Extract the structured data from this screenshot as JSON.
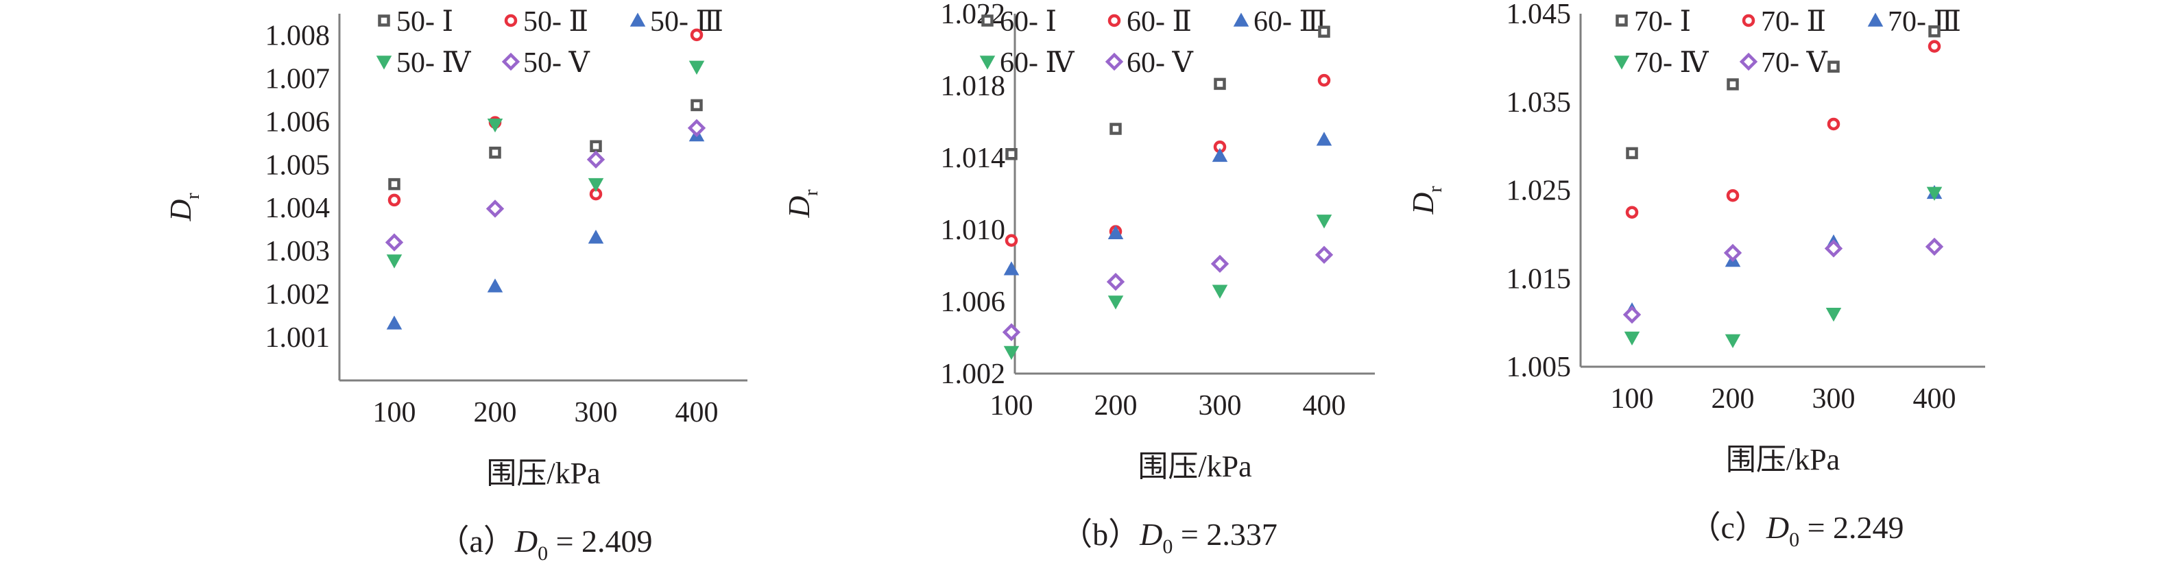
{
  "chart_data": [
    {
      "type": "scatter",
      "caption": {
        "prefix": "（a）",
        "d_symbol": "D",
        "d_sub": "0",
        "suffix": " = 2.409"
      },
      "xlabel": "围压/kPa",
      "ylabel": {
        "main": "D",
        "sub": "r"
      },
      "categories": [
        "100",
        "200",
        "300",
        "400"
      ],
      "x": [
        100,
        200,
        300,
        400
      ],
      "ylim": [
        1.0,
        1.0085
      ],
      "yticks": [
        1.001,
        1.002,
        1.003,
        1.004,
        1.005,
        1.006,
        1.007,
        1.008
      ],
      "ytick_labels": [
        "1.001",
        "1.002",
        "1.003",
        "1.004",
        "1.005",
        "1.006",
        "1.007",
        "1.008"
      ],
      "grid": false,
      "legend_position": "top",
      "series": [
        {
          "name": "50- Ⅰ",
          "color": "#595959",
          "marker": "square",
          "values": [
            1.00455,
            1.00528,
            1.00543,
            1.00638
          ]
        },
        {
          "name": "50- Ⅱ",
          "color": "#e8313f",
          "marker": "circle",
          "values": [
            1.00418,
            1.00598,
            1.00432,
            1.00801
          ]
        },
        {
          "name": "50- Ⅲ",
          "color": "#4472c4",
          "marker": "triangle-up",
          "values": [
            1.00132,
            1.00218,
            1.00331,
            1.00568
          ]
        },
        {
          "name": "50- Ⅳ",
          "color": "#3cb371",
          "marker": "triangle-down",
          "values": [
            1.00278,
            1.00593,
            1.00455,
            1.00727
          ]
        },
        {
          "name": "50- Ⅴ",
          "color": "#9966cc",
          "marker": "diamond",
          "values": [
            1.0032,
            1.00398,
            1.00512,
            1.00585
          ]
        }
      ]
    },
    {
      "type": "scatter",
      "caption": {
        "prefix": "（b）",
        "d_symbol": "D",
        "d_sub": "0",
        "suffix": " = 2.337"
      },
      "xlabel": "围压/kPa",
      "ylabel": {
        "main": "D",
        "sub": "r"
      },
      "categories": [
        "100",
        "200",
        "300",
        "400"
      ],
      "x": [
        100,
        200,
        300,
        400
      ],
      "ylim": [
        1.002,
        1.022
      ],
      "yticks": [
        1.002,
        1.006,
        1.01,
        1.014,
        1.018,
        1.022
      ],
      "ytick_labels": [
        "1.002",
        "1.006",
        "1.010",
        "1.014",
        "1.018",
        "1.022"
      ],
      "grid": false,
      "legend_position": "top",
      "series": [
        {
          "name": "60- Ⅰ",
          "color": "#595959",
          "marker": "square",
          "values": [
            1.0142,
            1.0156,
            1.0181,
            1.021
          ]
        },
        {
          "name": "60- Ⅱ",
          "color": "#e8313f",
          "marker": "circle",
          "values": [
            1.0094,
            1.0099,
            1.0146,
            1.0183
          ]
        },
        {
          "name": "60- Ⅲ",
          "color": "#4472c4",
          "marker": "triangle-up",
          "values": [
            1.0078,
            1.0098,
            1.0141,
            1.015
          ]
        },
        {
          "name": "60- Ⅳ",
          "color": "#3cb371",
          "marker": "triangle-down",
          "values": [
            1.0032,
            1.006,
            1.0066,
            1.0105
          ]
        },
        {
          "name": "60- Ⅴ",
          "color": "#9966cc",
          "marker": "diamond",
          "values": [
            1.0043,
            1.0071,
            1.0081,
            1.0086
          ]
        }
      ]
    },
    {
      "type": "scatter",
      "caption": {
        "prefix": "（c）",
        "d_symbol": "D",
        "d_sub": "0",
        "suffix": " = 2.249"
      },
      "xlabel": "围压/kPa",
      "ylabel": {
        "main": "D",
        "sub": "r"
      },
      "categories": [
        "100",
        "200",
        "300",
        "400"
      ],
      "x": [
        100,
        200,
        300,
        400
      ],
      "ylim": [
        1.005,
        1.045
      ],
      "yticks": [
        1.005,
        1.015,
        1.025,
        1.035,
        1.045
      ],
      "ytick_labels": [
        "1.005",
        "1.015",
        "1.025",
        "1.035",
        "1.045"
      ],
      "grid": false,
      "legend_position": "top",
      "series": [
        {
          "name": "70- Ⅰ",
          "color": "#595959",
          "marker": "square",
          "values": [
            1.0292,
            1.037,
            1.039,
            1.043
          ]
        },
        {
          "name": "70- Ⅱ",
          "color": "#e8313f",
          "marker": "circle",
          "values": [
            1.0225,
            1.0244,
            1.0325,
            1.0413
          ]
        },
        {
          "name": "70- Ⅲ",
          "color": "#4472c4",
          "marker": "triangle-up",
          "values": [
            1.0114,
            1.017,
            1.0191,
            1.0247
          ]
        },
        {
          "name": "70- Ⅳ",
          "color": "#3cb371",
          "marker": "triangle-down",
          "values": [
            1.0083,
            1.008,
            1.011,
            1.0247
          ]
        },
        {
          "name": "70- Ⅴ",
          "color": "#9966cc",
          "marker": "diamond",
          "values": [
            1.0109,
            1.0179,
            1.0184,
            1.0186
          ]
        }
      ]
    }
  ]
}
